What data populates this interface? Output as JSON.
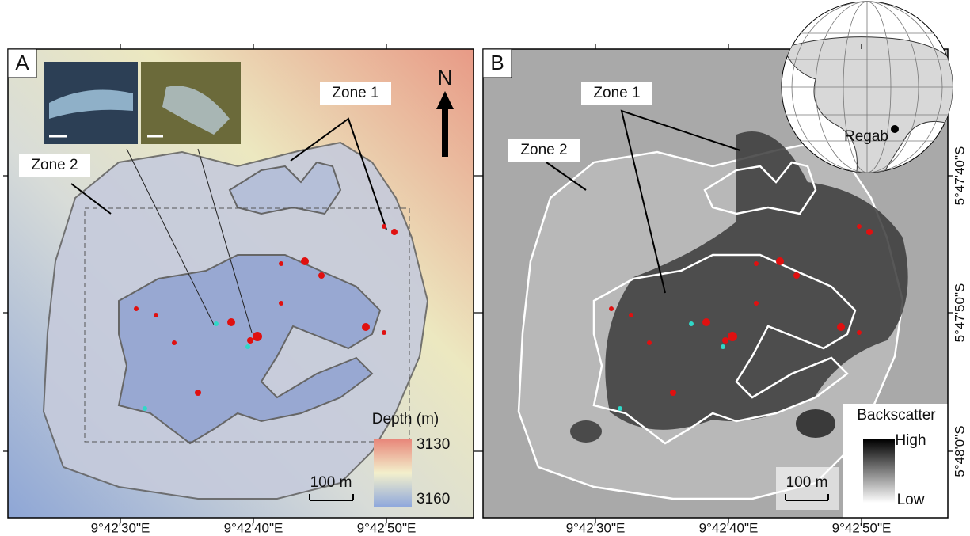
{
  "panel_a": {
    "label": "A",
    "zone_1": "Zone 1",
    "zone_2": "Zone 2",
    "north": "N",
    "legend": {
      "title": "Depth (m)",
      "top": "3130",
      "bottom": "3160"
    },
    "scale_bar": "100 m",
    "x_labels": [
      "9°42'30\"E",
      "9°42'40\"E",
      "9°42'50\"E"
    ]
  },
  "panel_b": {
    "label": "B",
    "zone_1": "Zone 1",
    "zone_2": "Zone 2",
    "legend": {
      "title": "Backscatter",
      "high": "High",
      "low": "Low"
    },
    "scale_bar": "100 m",
    "globe_label": "Regab",
    "x_labels": [
      "9°42'30\"E",
      "9°42'40\"E",
      "9°42'50\"E"
    ],
    "y_labels": [
      "5°47'40\"S",
      "5°47'50\"S",
      "5°48'0\"S"
    ]
  }
}
